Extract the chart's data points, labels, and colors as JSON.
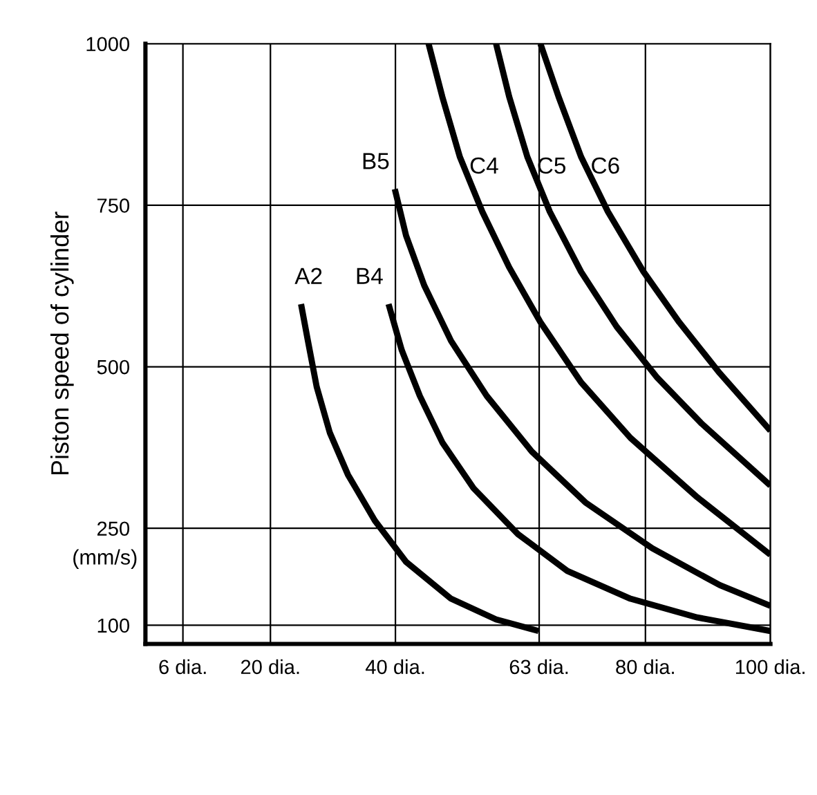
{
  "chart_data": {
    "type": "line",
    "ylabel": "Piston speed of cylinder",
    "annotations": [
      "(mm/s)"
    ],
    "xlim": [
      0,
      100
    ],
    "xticks": [
      {
        "value": 6,
        "label": "6 dia."
      },
      {
        "value": 20,
        "label": "20 dia."
      },
      {
        "value": 40,
        "label": "40 dia."
      },
      {
        "value": 63,
        "label": "63 dia."
      },
      {
        "value": 80,
        "label": "80 dia."
      },
      {
        "value": 100,
        "label": "100 dia."
      }
    ],
    "ylim": [
      71,
      1000
    ],
    "yticks": [
      100,
      250,
      500,
      750,
      1000
    ],
    "grid": true,
    "marker": "none",
    "line_style": "solid",
    "legend": false,
    "series": [
      {
        "name": "A2",
        "color": "#000000",
        "x": [
          24.9,
          26.0,
          27.4,
          29.5,
          32.4,
          36.7,
          41.7,
          48.9,
          56.1,
          62.9
        ],
        "values": [
          597,
          540,
          469,
          398,
          333,
          262,
          198,
          141,
          109,
          91
        ]
      },
      {
        "name": "B4",
        "color": "#000000",
        "x": [
          38.9,
          41.0,
          43.9,
          47.5,
          52.5,
          59.6,
          67.5,
          77.6,
          88.3,
          100
        ],
        "values": [
          597,
          526,
          455,
          383,
          312,
          241,
          184,
          141,
          112,
          91
        ]
      },
      {
        "name": "B5",
        "color": "#000000",
        "x": [
          39.9,
          41.7,
          44.6,
          48.9,
          54.6,
          61.8,
          70.4,
          81.1,
          91.9,
          100
        ],
        "values": [
          775,
          703,
          626,
          540,
          455,
          369,
          290,
          219,
          162,
          130
        ]
      },
      {
        "name": "C4",
        "color": "#000000",
        "x": [
          45.3,
          47.5,
          50.3,
          53.9,
          58.2,
          63.2,
          69.7,
          77.6,
          88.3,
          100
        ],
        "values": [
          1000,
          918,
          825,
          740,
          654,
          569,
          476,
          390,
          298,
          209
        ]
      },
      {
        "name": "C5",
        "color": "#000000",
        "x": [
          56.1,
          58.2,
          61.1,
          64.7,
          69.7,
          75.4,
          81.9,
          89.0,
          100
        ],
        "values": [
          1000,
          918,
          825,
          740,
          647,
          562,
          483,
          412,
          316
        ]
      },
      {
        "name": "C6",
        "color": "#000000",
        "x": [
          63.2,
          66.1,
          69.7,
          74.0,
          79.7,
          85.4,
          91.9,
          100
        ],
        "values": [
          1000,
          918,
          825,
          740,
          647,
          569,
          490,
          401
        ]
      }
    ]
  }
}
